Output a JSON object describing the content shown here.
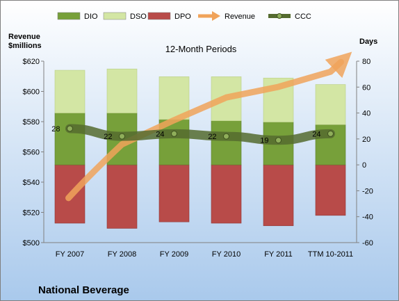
{
  "company": "National Beverage",
  "colors": {
    "dio": "#77a03a",
    "dso": "#d3e6a4",
    "dpo": "#b84b49",
    "revenue": "#f0a35a",
    "ccc": "#556b2f",
    "background_top": "#ffffff",
    "background_bottom": "#a9c9ec"
  },
  "chart_data": {
    "type": "bar",
    "subtitle": "12-Month Periods",
    "left_axis_label": "Revenue\n$millions",
    "right_axis_label": "Days",
    "categories": [
      "FY 2007",
      "FY 2008",
      "FY 2009",
      "FY 2010",
      "FY 2011",
      "TTM 10-2011"
    ],
    "legend_position": "top",
    "legend": [
      "DIO",
      "DSO",
      "DPO",
      "Revenue",
      "CCC"
    ],
    "left_axis": {
      "min": 500,
      "max": 620,
      "step": 20,
      "ticks": [
        "$500",
        "$520",
        "$540",
        "$560",
        "$580",
        "$600",
        "$620"
      ]
    },
    "right_axis": {
      "min": -60,
      "max": 80,
      "step": 20,
      "ticks": [
        "-60",
        "-40",
        "-20",
        "0",
        "20",
        "40",
        "60",
        "80"
      ]
    },
    "series": [
      {
        "name": "DIO",
        "axis": "right",
        "kind": "stacked-positive",
        "values": [
          40,
          40,
          35,
          34,
          33,
          31
        ]
      },
      {
        "name": "DSO",
        "axis": "right",
        "kind": "stacked-positive",
        "values": [
          33,
          34,
          33,
          34,
          34,
          31
        ]
      },
      {
        "name": "DPO",
        "axis": "right",
        "kind": "stacked-negative",
        "values": [
          -45,
          -49,
          -44,
          -45,
          -47,
          -39
        ]
      },
      {
        "name": "Revenue",
        "axis": "left",
        "kind": "line-arrow",
        "values": [
          541,
          565,
          581,
          596,
          603,
          613
        ]
      },
      {
        "name": "CCC",
        "axis": "right",
        "kind": "line",
        "values": [
          28,
          22,
          24,
          22,
          19,
          24
        ],
        "labels": [
          "28",
          "22",
          "24",
          "22",
          "19",
          "24"
        ]
      }
    ]
  }
}
